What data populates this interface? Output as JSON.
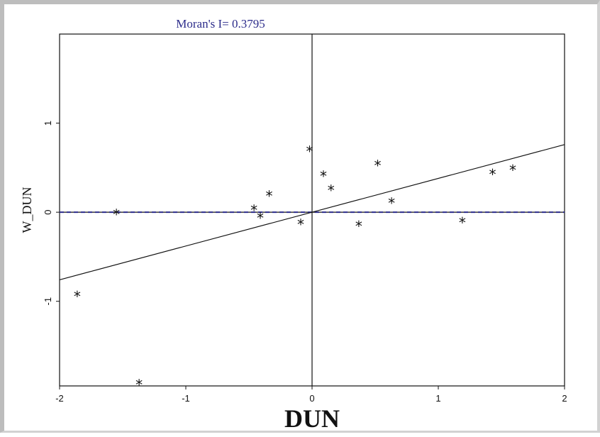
{
  "chart_data": {
    "type": "scatter",
    "title": "Moran's I= 0.3795",
    "xlabel": "DUN",
    "ylabel": "W_DUN",
    "xlim": [
      -2,
      2
    ],
    "ylim": [
      -1.95,
      2.0
    ],
    "xticks": [
      -2,
      -1,
      0,
      1,
      2
    ],
    "yticks": [
      -1,
      0,
      1
    ],
    "xtick_labels": [
      "-2",
      "-1",
      "0",
      "1",
      "2"
    ],
    "ytick_labels": [
      "-1",
      "0",
      "1"
    ],
    "marker": "*",
    "points": [
      {
        "x": -1.86,
        "y": -0.94
      },
      {
        "x": -1.55,
        "y": -0.02
      },
      {
        "x": -1.37,
        "y": -1.93
      },
      {
        "x": -0.46,
        "y": 0.03
      },
      {
        "x": -0.41,
        "y": -0.06
      },
      {
        "x": -0.34,
        "y": 0.19
      },
      {
        "x": -0.09,
        "y": -0.13
      },
      {
        "x": -0.02,
        "y": 0.69
      },
      {
        "x": 0.09,
        "y": 0.41
      },
      {
        "x": 0.15,
        "y": 0.25
      },
      {
        "x": 0.37,
        "y": -0.15
      },
      {
        "x": 0.52,
        "y": 0.53
      },
      {
        "x": 0.63,
        "y": 0.11
      },
      {
        "x": 1.19,
        "y": -0.11
      },
      {
        "x": 1.43,
        "y": 0.43
      },
      {
        "x": 1.59,
        "y": 0.48
      }
    ],
    "regression_slope": 0.3795,
    "grid": false,
    "colors": {
      "title": "#2b2b8a",
      "dashed_line": "#2b2b8a",
      "axes": "#111111"
    }
  }
}
